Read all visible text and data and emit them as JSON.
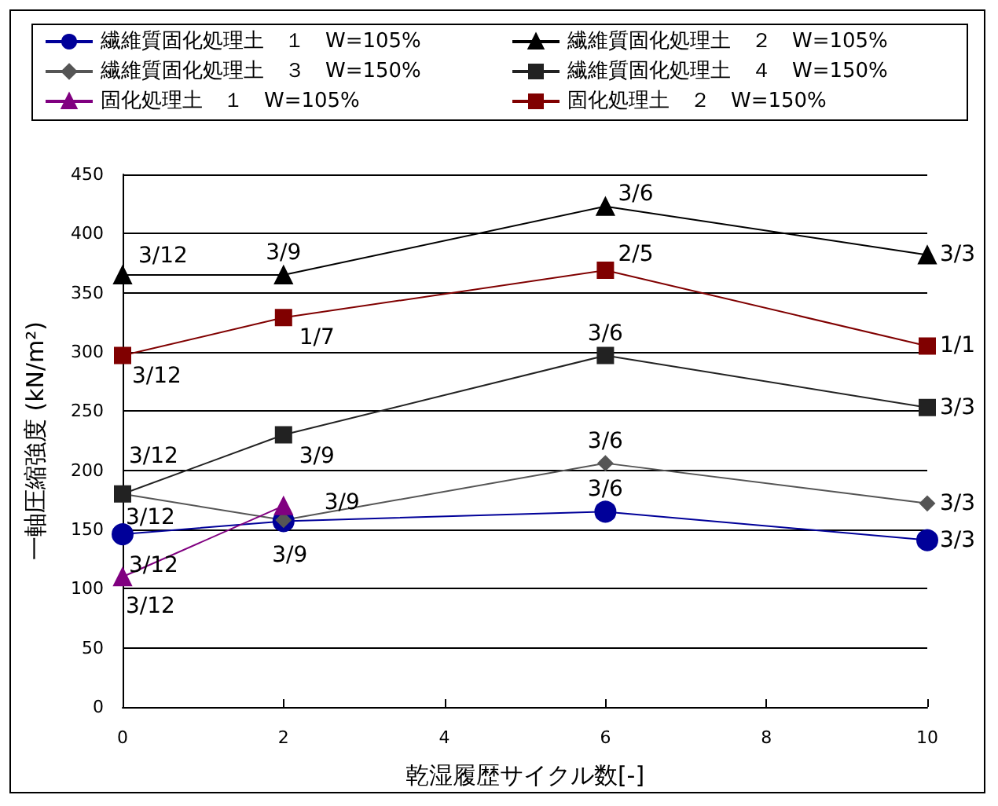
{
  "chart_data": {
    "type": "line",
    "xlabel": "乾湿履歴サイクル数[-]",
    "ylabel": "一軸圧縮強度 (kN/m²)",
    "x": [
      0,
      2,
      6,
      10
    ],
    "xlim": [
      0,
      10
    ],
    "xticks": [
      0,
      2,
      4,
      6,
      8,
      10
    ],
    "ylim": [
      0,
      450
    ],
    "yticks": [
      0,
      50,
      100,
      150,
      200,
      250,
      300,
      350,
      400,
      450
    ],
    "grid": "y",
    "legend": "top",
    "line_style": "solid",
    "series": [
      {
        "name": "繊維質固化処理土　１　W=105%",
        "color": "#000099",
        "marker": "circle",
        "values": [
          146,
          157,
          165,
          141
        ]
      },
      {
        "name": "繊維質固化処理土　２　W=105%",
        "color": "#000000",
        "marker": "triangle",
        "values": [
          365,
          365,
          423,
          382
        ]
      },
      {
        "name": "繊維質固化処理土　３　W=150%",
        "color": "#555555",
        "marker": "diamond",
        "values": [
          180,
          158,
          206,
          172
        ]
      },
      {
        "name": "繊維質固化処理土　４　W=150%",
        "color": "#222222",
        "marker": "square",
        "values": [
          180,
          230,
          297,
          253
        ]
      },
      {
        "name": "固化処理土　１　W=105%",
        "color": "#800080",
        "marker": "triangle",
        "x": [
          0,
          2
        ],
        "values": [
          110,
          170
        ]
      },
      {
        "name": "固化処理土　２　W=150%",
        "color": "#800000",
        "marker": "square",
        "values": [
          297,
          329,
          369,
          305
        ]
      }
    ],
    "annotations": [
      {
        "text": "3/12",
        "x": 0,
        "y": 146
      },
      {
        "text": "3/9",
        "x": 2,
        "y": 157
      },
      {
        "text": "3/6",
        "x": 6,
        "y": 165
      },
      {
        "text": "3/3",
        "x": 10,
        "y": 141
      },
      {
        "text": "3/12",
        "x": 0,
        "y": 365
      },
      {
        "text": "3/9",
        "x": 2,
        "y": 365
      },
      {
        "text": "3/6",
        "x": 6,
        "y": 423
      },
      {
        "text": "3/3",
        "x": 10,
        "y": 382
      },
      {
        "text": "3/12",
        "x": 0,
        "y": 180
      },
      {
        "text": "3/9",
        "x": 2,
        "y": 158
      },
      {
        "text": "3/6",
        "x": 6,
        "y": 206
      },
      {
        "text": "3/3",
        "x": 10,
        "y": 172
      },
      {
        "text": "3/12",
        "x": 0,
        "y": 180
      },
      {
        "text": "3/9",
        "x": 2,
        "y": 230
      },
      {
        "text": "3/6",
        "x": 6,
        "y": 297
      },
      {
        "text": "3/3",
        "x": 10,
        "y": 253
      },
      {
        "text": "3/12",
        "x": 0,
        "y": 110
      },
      {
        "text": "3/12",
        "x": 0,
        "y": 297
      },
      {
        "text": "1/7",
        "x": 2,
        "y": 329
      },
      {
        "text": "2/5",
        "x": 6,
        "y": 369
      },
      {
        "text": "1/1",
        "x": 10,
        "y": 305
      }
    ]
  }
}
